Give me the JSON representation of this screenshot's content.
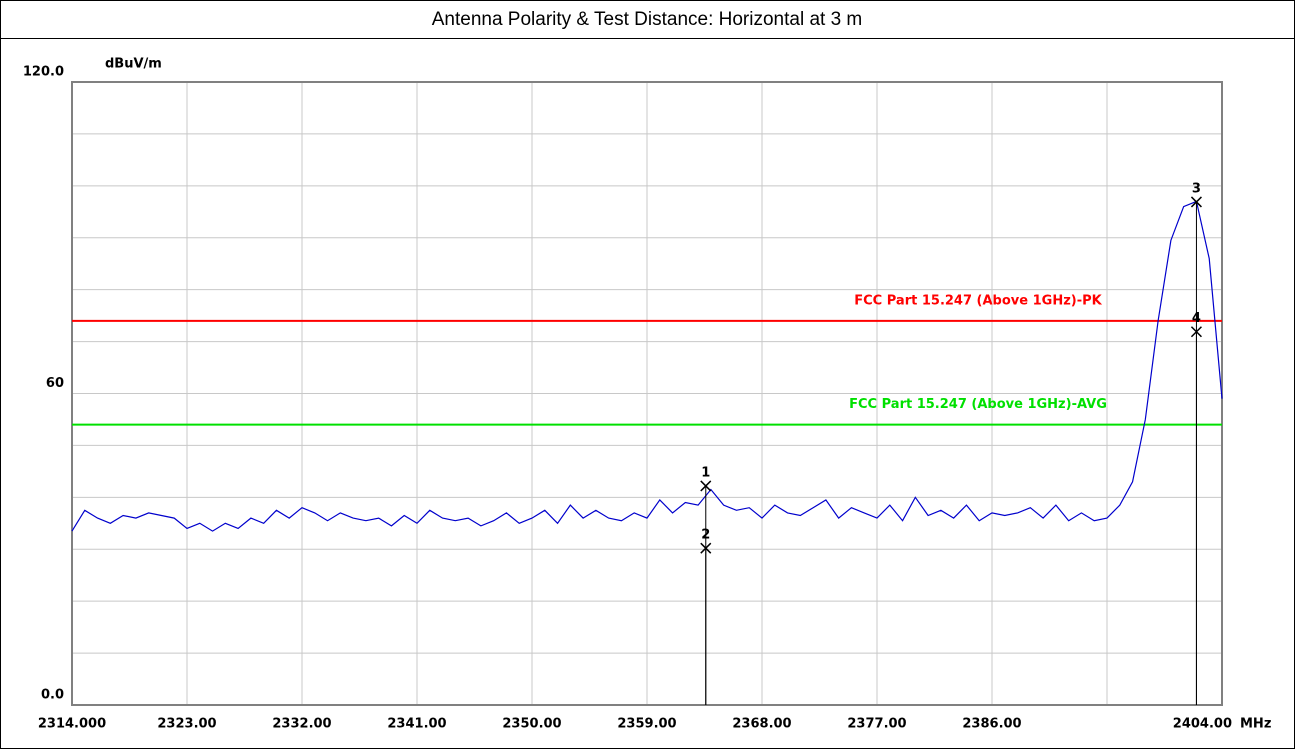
{
  "chart_data": {
    "type": "line",
    "title": "Antenna Polarity & Test Distance: Horizontal at 3 m",
    "y_unit": "dBuV/m",
    "x_unit": "MHz",
    "xlim": [
      2314,
      2404
    ],
    "ylim": [
      0,
      120
    ],
    "xticks": [
      {
        "value": 2314,
        "label": "2314.000"
      },
      {
        "value": 2323,
        "label": "2323.00"
      },
      {
        "value": 2332,
        "label": "2332.00"
      },
      {
        "value": 2341,
        "label": "2341.00"
      },
      {
        "value": 2350,
        "label": "2350.00"
      },
      {
        "value": 2359,
        "label": "2359.00"
      },
      {
        "value": 2368,
        "label": "2368.00"
      },
      {
        "value": 2377,
        "label": "2377.00"
      },
      {
        "value": 2386,
        "label": "2386.00"
      },
      {
        "value": 2404,
        "label": "2404.00"
      }
    ],
    "yticks": [
      {
        "value": 0,
        "label": "0.0"
      },
      60,
      {
        "value": 120,
        "label": "120.0"
      }
    ],
    "x_grid": [
      2314,
      2323,
      2332,
      2341,
      2350,
      2359,
      2368,
      2377,
      2386,
      2395,
      2404
    ],
    "y_grid": [
      0,
      10,
      20,
      30,
      40,
      50,
      60,
      70,
      80,
      90,
      100,
      110,
      120
    ],
    "limit_lines": [
      {
        "name": "FCC Part 15.247 (Above 1GHz)-PK",
        "value": 74,
        "color": "#ff0000"
      },
      {
        "name": "FCC Part 15.247 (Above 1GHz)-AVG",
        "value": 54,
        "color": "#00e000"
      }
    ],
    "markers": [
      {
        "label": "1",
        "x": 2363.6,
        "y": 42.2
      },
      {
        "label": "2",
        "x": 2363.6,
        "y": 30.2
      },
      {
        "label": "3",
        "x": 2402,
        "y": 96.9
      },
      {
        "label": "4",
        "x": 2402,
        "y": 71.9
      }
    ],
    "x": [
      2314,
      2315,
      2316,
      2317,
      2318,
      2319,
      2320,
      2321,
      2322,
      2323,
      2324,
      2325,
      2326,
      2327,
      2328,
      2329,
      2330,
      2331,
      2332,
      2333,
      2334,
      2335,
      2336,
      2337,
      2338,
      2339,
      2340,
      2341,
      2342,
      2343,
      2344,
      2345,
      2346,
      2347,
      2348,
      2349,
      2350,
      2351,
      2352,
      2353,
      2354,
      2355,
      2356,
      2357,
      2358,
      2359,
      2360,
      2361,
      2362,
      2363,
      2364,
      2365,
      2366,
      2367,
      2368,
      2369,
      2370,
      2371,
      2372,
      2373,
      2374,
      2375,
      2376,
      2377,
      2378,
      2379,
      2380,
      2381,
      2382,
      2383,
      2384,
      2385,
      2386,
      2387,
      2388,
      2389,
      2390,
      2391,
      2392,
      2393,
      2394,
      2395,
      2396,
      2397,
      2398,
      2399,
      2400,
      2401,
      2402,
      2403,
      2404
    ],
    "series": [
      {
        "color": "#0000cc",
        "values": [
          33.5,
          37.5,
          36,
          35,
          36.5,
          36,
          37,
          36.5,
          36,
          34,
          35,
          33.5,
          35,
          34,
          36,
          35,
          37.5,
          36,
          38,
          37,
          35.5,
          37,
          36,
          35.5,
          36,
          34.5,
          36.5,
          35,
          37.5,
          36,
          35.5,
          36,
          34.5,
          35.5,
          37,
          35,
          36,
          37.5,
          35,
          38.5,
          36,
          37.5,
          36,
          35.5,
          37,
          36,
          39.5,
          37,
          39,
          38.5,
          41.5,
          38.5,
          37.5,
          38,
          36,
          38.5,
          37,
          36.5,
          38,
          39.5,
          36,
          38,
          37,
          36,
          38.5,
          35.5,
          40,
          36.5,
          37.5,
          36,
          38.5,
          35.5,
          37,
          36.5,
          37,
          38,
          36,
          38.5,
          35.5,
          37,
          35.5,
          36,
          38.5,
          43,
          55,
          74,
          89.5,
          96,
          97,
          86,
          59
        ]
      }
    ]
  }
}
